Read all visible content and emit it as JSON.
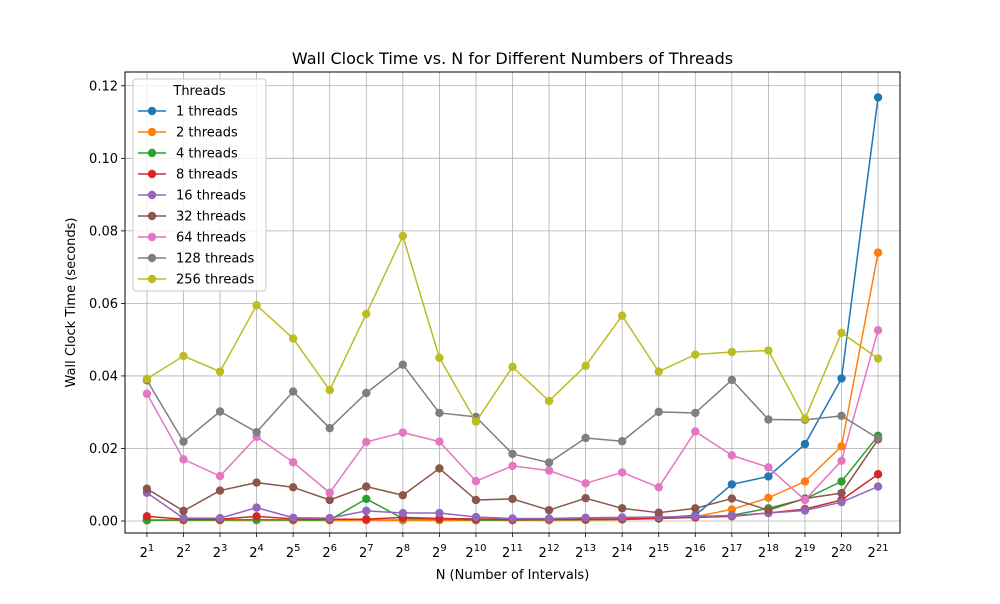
{
  "chart_data": {
    "type": "line",
    "title": "Wall Clock Time vs. N for Different Numbers of Threads",
    "xlabel": "N (Number of Intervals)",
    "ylabel": "Wall Clock Time (seconds)",
    "x_tick_labels": [
      {
        "base": "2",
        "exp": "1"
      },
      {
        "base": "2",
        "exp": "2"
      },
      {
        "base": "2",
        "exp": "3"
      },
      {
        "base": "2",
        "exp": "4"
      },
      {
        "base": "2",
        "exp": "5"
      },
      {
        "base": "2",
        "exp": "6"
      },
      {
        "base": "2",
        "exp": "7"
      },
      {
        "base": "2",
        "exp": "8"
      },
      {
        "base": "2",
        "exp": "9"
      },
      {
        "base": "2",
        "exp": "10"
      },
      {
        "base": "2",
        "exp": "11"
      },
      {
        "base": "2",
        "exp": "12"
      },
      {
        "base": "2",
        "exp": "13"
      },
      {
        "base": "2",
        "exp": "14"
      },
      {
        "base": "2",
        "exp": "15"
      },
      {
        "base": "2",
        "exp": "16"
      },
      {
        "base": "2",
        "exp": "17"
      },
      {
        "base": "2",
        "exp": "18"
      },
      {
        "base": "2",
        "exp": "19"
      },
      {
        "base": "2",
        "exp": "20"
      },
      {
        "base": "2",
        "exp": "21"
      }
    ],
    "y_ticks": [
      0.0,
      0.02,
      0.04,
      0.06,
      0.08,
      0.1,
      0.12
    ],
    "y_tick_labels": [
      "0.00",
      "0.02",
      "0.04",
      "0.06",
      "0.08",
      "0.10",
      "0.12"
    ],
    "ylim": [
      -0.0033,
      0.1238
    ],
    "grid": true,
    "legend_title": "Threads",
    "legend_position": "top-left",
    "x": [
      2,
      4,
      8,
      16,
      32,
      64,
      128,
      256,
      512,
      1024,
      2048,
      4096,
      8192,
      16384,
      32768,
      65536,
      131072,
      262144,
      524288,
      1048576,
      2097152
    ],
    "series": [
      {
        "name": "1 threads",
        "color": "#1f77b4",
        "values": [
          0.0003,
          0.0003,
          0.0003,
          0.0003,
          0.0003,
          0.0003,
          0.0003,
          0.0003,
          0.0003,
          0.0003,
          0.0003,
          0.0003,
          0.0004,
          0.0005,
          0.0008,
          0.0016,
          0.0101,
          0.0123,
          0.0212,
          0.0393,
          0.1168
        ]
      },
      {
        "name": "2 threads",
        "color": "#ff7f0e",
        "values": [
          0.0002,
          0.0002,
          0.0002,
          0.0002,
          0.0002,
          0.0002,
          0.0002,
          0.0002,
          0.0002,
          0.0002,
          0.0002,
          0.0002,
          0.0003,
          0.0004,
          0.0007,
          0.0012,
          0.0032,
          0.0064,
          0.0109,
          0.0206,
          0.074
        ]
      },
      {
        "name": "4 threads",
        "color": "#2ca02c",
        "values": [
          0.0002,
          0.0003,
          0.0003,
          0.0004,
          0.0003,
          0.0003,
          0.0061,
          0.0007,
          0.0006,
          0.0003,
          0.0003,
          0.0004,
          0.0004,
          0.0005,
          0.0007,
          0.001,
          0.0016,
          0.0035,
          0.0061,
          0.0109,
          0.0235
        ]
      },
      {
        "name": "8 threads",
        "color": "#d62728",
        "values": [
          0.0013,
          0.0005,
          0.0005,
          0.0013,
          0.0006,
          0.0005,
          0.0005,
          0.001,
          0.0007,
          0.0006,
          0.0004,
          0.0005,
          0.0005,
          0.0006,
          0.0008,
          0.001,
          0.0013,
          0.0022,
          0.0033,
          0.0058,
          0.0129
        ]
      },
      {
        "name": "16 threads",
        "color": "#9467bd",
        "values": [
          0.0078,
          0.0008,
          0.0008,
          0.0037,
          0.0009,
          0.0008,
          0.0028,
          0.0022,
          0.0022,
          0.0011,
          0.0007,
          0.0007,
          0.0009,
          0.001,
          0.0011,
          0.0013,
          0.0015,
          0.0022,
          0.0029,
          0.0052,
          0.0095
        ]
      },
      {
        "name": "32 threads",
        "color": "#8c564b",
        "values": [
          0.0089,
          0.0028,
          0.0084,
          0.0106,
          0.0093,
          0.0058,
          0.0095,
          0.0071,
          0.0145,
          0.0058,
          0.0061,
          0.003,
          0.0063,
          0.0035,
          0.0023,
          0.0035,
          0.0062,
          0.003,
          0.0062,
          0.0077,
          0.0225
        ]
      },
      {
        "name": "64 threads",
        "color": "#e377c2",
        "values": [
          0.0351,
          0.017,
          0.0124,
          0.0232,
          0.0162,
          0.0078,
          0.0218,
          0.0244,
          0.0219,
          0.011,
          0.0152,
          0.0139,
          0.0104,
          0.0134,
          0.0093,
          0.0247,
          0.0181,
          0.0148,
          0.0058,
          0.0166,
          0.0526
        ]
      },
      {
        "name": "128 threads",
        "color": "#7f7f7f",
        "values": [
          0.0388,
          0.0219,
          0.0302,
          0.0245,
          0.0357,
          0.0256,
          0.0353,
          0.0431,
          0.0298,
          0.0287,
          0.0185,
          0.0161,
          0.0229,
          0.022,
          0.0301,
          0.0298,
          0.0389,
          0.028,
          0.0279,
          0.029,
          0.0228
        ]
      },
      {
        "name": "256 threads",
        "color": "#bcbd22",
        "values": [
          0.0392,
          0.0455,
          0.0412,
          0.0595,
          0.0503,
          0.0361,
          0.0571,
          0.0786,
          0.045,
          0.0274,
          0.0425,
          0.0331,
          0.0428,
          0.0566,
          0.0412,
          0.0459,
          0.0466,
          0.047,
          0.0282,
          0.0519,
          0.0448
        ]
      }
    ]
  }
}
